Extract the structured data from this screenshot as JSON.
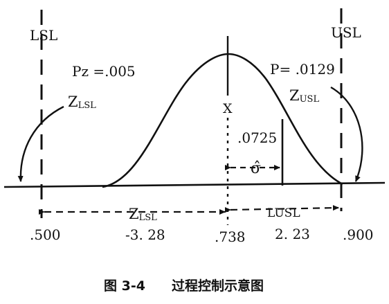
{
  "labels": {
    "lsl": "LSL",
    "usl": "USL",
    "x_bar": "X",
    "p_z": "Pz =.005",
    "p": "P= .0129",
    "z_lsl_left_main": "Z",
    "z_lsl_left_sub": "LSL",
    "z_usl_right_main": "Z",
    "z_usl_right_sub": "USL",
    "tail_value": ".0725",
    "sigma": "σ̂",
    "z_lsl_bottom_main": "Z",
    "z_lsl_bottom_sub": "LSL",
    "z_usl_bottom": "LUSL"
  },
  "values": {
    "lsl_value": ".500",
    "z_lsl_value": "-3. 28",
    "mean_value": ".738",
    "z_usl_value": "2. 23",
    "usl_value": ".900"
  },
  "caption": {
    "figure_no": "图 3-4",
    "title": "过程控制示意图"
  },
  "colors": {
    "ink": "#111111",
    "background": "#ffffff"
  }
}
